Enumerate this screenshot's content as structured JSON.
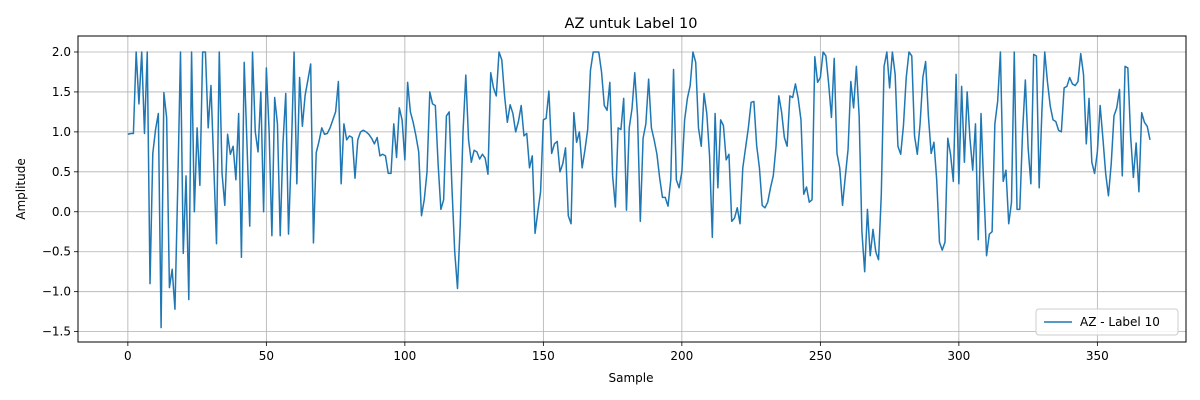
{
  "chart_data": {
    "type": "line",
    "title": "AZ untuk Label 10",
    "xlabel": "Sample",
    "ylabel": "Amplitude",
    "xlim": [
      -18,
      382
    ],
    "ylim": [
      -1.63,
      2.2
    ],
    "xticks": [
      0,
      50,
      100,
      150,
      200,
      250,
      300,
      350
    ],
    "yticks": [
      -1.5,
      -1.0,
      -0.5,
      0.0,
      0.5,
      1.0,
      1.5,
      2.0
    ],
    "xtick_labels": [
      "0",
      "50",
      "100",
      "150",
      "200",
      "250",
      "300",
      "350"
    ],
    "ytick_labels": [
      "−1.5",
      "−1.0",
      "−0.5",
      "0.0",
      "0.5",
      "1.0",
      "1.5",
      "2.0"
    ],
    "grid": true,
    "legend_position": "lower-right",
    "series": [
      {
        "name": "AZ - Label 10",
        "color": "#1f77b4",
        "x_start": 0,
        "x_step": 1,
        "values": [
          0.97,
          0.98,
          0.98,
          2.0,
          1.35,
          2.0,
          0.98,
          2.0,
          -0.9,
          0.73,
          1.03,
          1.23,
          -1.45,
          1.49,
          1.18,
          -0.95,
          -0.72,
          -1.22,
          0.3,
          2.0,
          -0.52,
          0.45,
          -1.1,
          2.0,
          0.0,
          1.05,
          0.33,
          2.0,
          2.0,
          1.05,
          1.58,
          0.6,
          -0.4,
          2.0,
          0.48,
          0.08,
          0.97,
          0.72,
          0.82,
          0.4,
          1.23,
          -0.57,
          1.87,
          0.85,
          -0.18,
          2.0,
          1.0,
          0.75,
          1.5,
          0.0,
          1.8,
          1.0,
          -0.3,
          1.43,
          1.1,
          -0.3,
          0.86,
          1.48,
          -0.28,
          0.73,
          2.0,
          0.35,
          1.68,
          1.07,
          1.46,
          1.65,
          1.85,
          -0.39,
          0.74,
          0.88,
          1.05,
          0.97,
          0.98,
          1.05,
          1.15,
          1.25,
          1.63,
          0.35,
          1.1,
          0.9,
          0.95,
          0.93,
          0.42,
          0.9,
          1.0,
          1.02,
          1.0,
          0.97,
          0.92,
          0.85,
          0.93,
          0.7,
          0.72,
          0.7,
          0.48,
          0.48,
          1.1,
          0.68,
          1.3,
          1.15,
          0.65,
          1.62,
          1.25,
          1.12,
          0.95,
          0.75,
          -0.05,
          0.15,
          0.5,
          1.5,
          1.35,
          1.33,
          0.6,
          0.03,
          0.15,
          1.2,
          1.25,
          0.3,
          -0.5,
          -0.96,
          -0.15,
          1.0,
          1.71,
          0.9,
          0.62,
          0.77,
          0.75,
          0.66,
          0.72,
          0.67,
          0.47,
          1.74,
          1.55,
          1.45,
          2.0,
          1.9,
          1.45,
          1.12,
          1.34,
          1.23,
          1.0,
          1.13,
          1.33,
          0.95,
          0.98,
          0.55,
          0.7,
          -0.27,
          0.0,
          0.25,
          1.15,
          1.17,
          1.51,
          0.73,
          0.85,
          0.88,
          0.5,
          0.6,
          0.8,
          -0.05,
          -0.15,
          1.24,
          0.87,
          1.0,
          0.55,
          0.77,
          1.03,
          1.77,
          2.0,
          2.0,
          2.0,
          1.75,
          1.33,
          1.27,
          1.62,
          0.45,
          0.06,
          1.05,
          1.03,
          1.42,
          0.02,
          1.05,
          1.29,
          1.74,
          1.2,
          -0.12,
          0.92,
          1.1,
          1.66,
          1.05,
          0.9,
          0.72,
          0.42,
          0.18,
          0.18,
          0.07,
          0.4,
          1.78,
          0.4,
          0.3,
          0.5,
          1.15,
          1.42,
          1.58,
          2.0,
          1.87,
          1.05,
          0.82,
          1.48,
          1.23,
          0.7,
          -0.32,
          1.23,
          0.3,
          1.15,
          1.08,
          0.65,
          0.72,
          -0.12,
          -0.08,
          0.05,
          -0.15,
          0.55,
          0.8,
          1.05,
          1.37,
          1.38,
          0.83,
          0.55,
          0.08,
          0.05,
          0.12,
          0.3,
          0.45,
          0.82,
          1.45,
          1.25,
          0.93,
          0.82,
          1.45,
          1.43,
          1.6,
          1.42,
          1.15,
          0.22,
          0.31,
          0.12,
          0.15,
          1.94,
          1.62,
          1.68,
          2.0,
          1.95,
          1.6,
          1.18,
          1.92,
          0.73,
          0.55,
          0.08,
          0.44,
          0.78,
          1.63,
          1.3,
          1.82,
          1.2,
          -0.25,
          -0.75,
          0.03,
          -0.55,
          -0.22,
          -0.5,
          -0.6,
          0.22,
          1.82,
          2.0,
          1.55,
          2.0,
          1.72,
          0.82,
          0.72,
          1.08,
          1.68,
          2.0,
          1.95,
          0.95,
          0.72,
          1.1,
          1.68,
          1.88,
          1.2,
          0.73,
          0.87,
          0.4,
          -0.38,
          -0.48,
          -0.38,
          0.92,
          0.72,
          0.38,
          1.72,
          0.35,
          1.57,
          0.62,
          1.5,
          0.92,
          0.52,
          1.1,
          -0.35,
          1.23,
          0.3,
          -0.55,
          -0.28,
          -0.25,
          1.1,
          1.38,
          2.0,
          0.38,
          0.52,
          -0.15,
          0.12,
          2.0,
          0.03,
          0.03,
          1.0,
          1.65,
          0.8,
          0.35,
          1.97,
          1.95,
          0.3,
          1.28,
          2.0,
          1.62,
          1.32,
          1.15,
          1.13,
          1.02,
          1.0,
          1.55,
          1.57,
          1.68,
          1.6,
          1.58,
          1.63,
          1.98,
          1.72,
          0.85,
          1.42,
          0.62,
          0.48,
          0.75,
          1.33,
          0.92,
          0.48,
          0.2,
          0.6,
          1.2,
          1.3,
          1.53,
          0.45,
          1.82,
          1.8,
          0.95,
          0.43,
          0.86,
          0.25,
          1.24,
          1.12,
          1.07,
          0.9
        ]
      }
    ]
  }
}
